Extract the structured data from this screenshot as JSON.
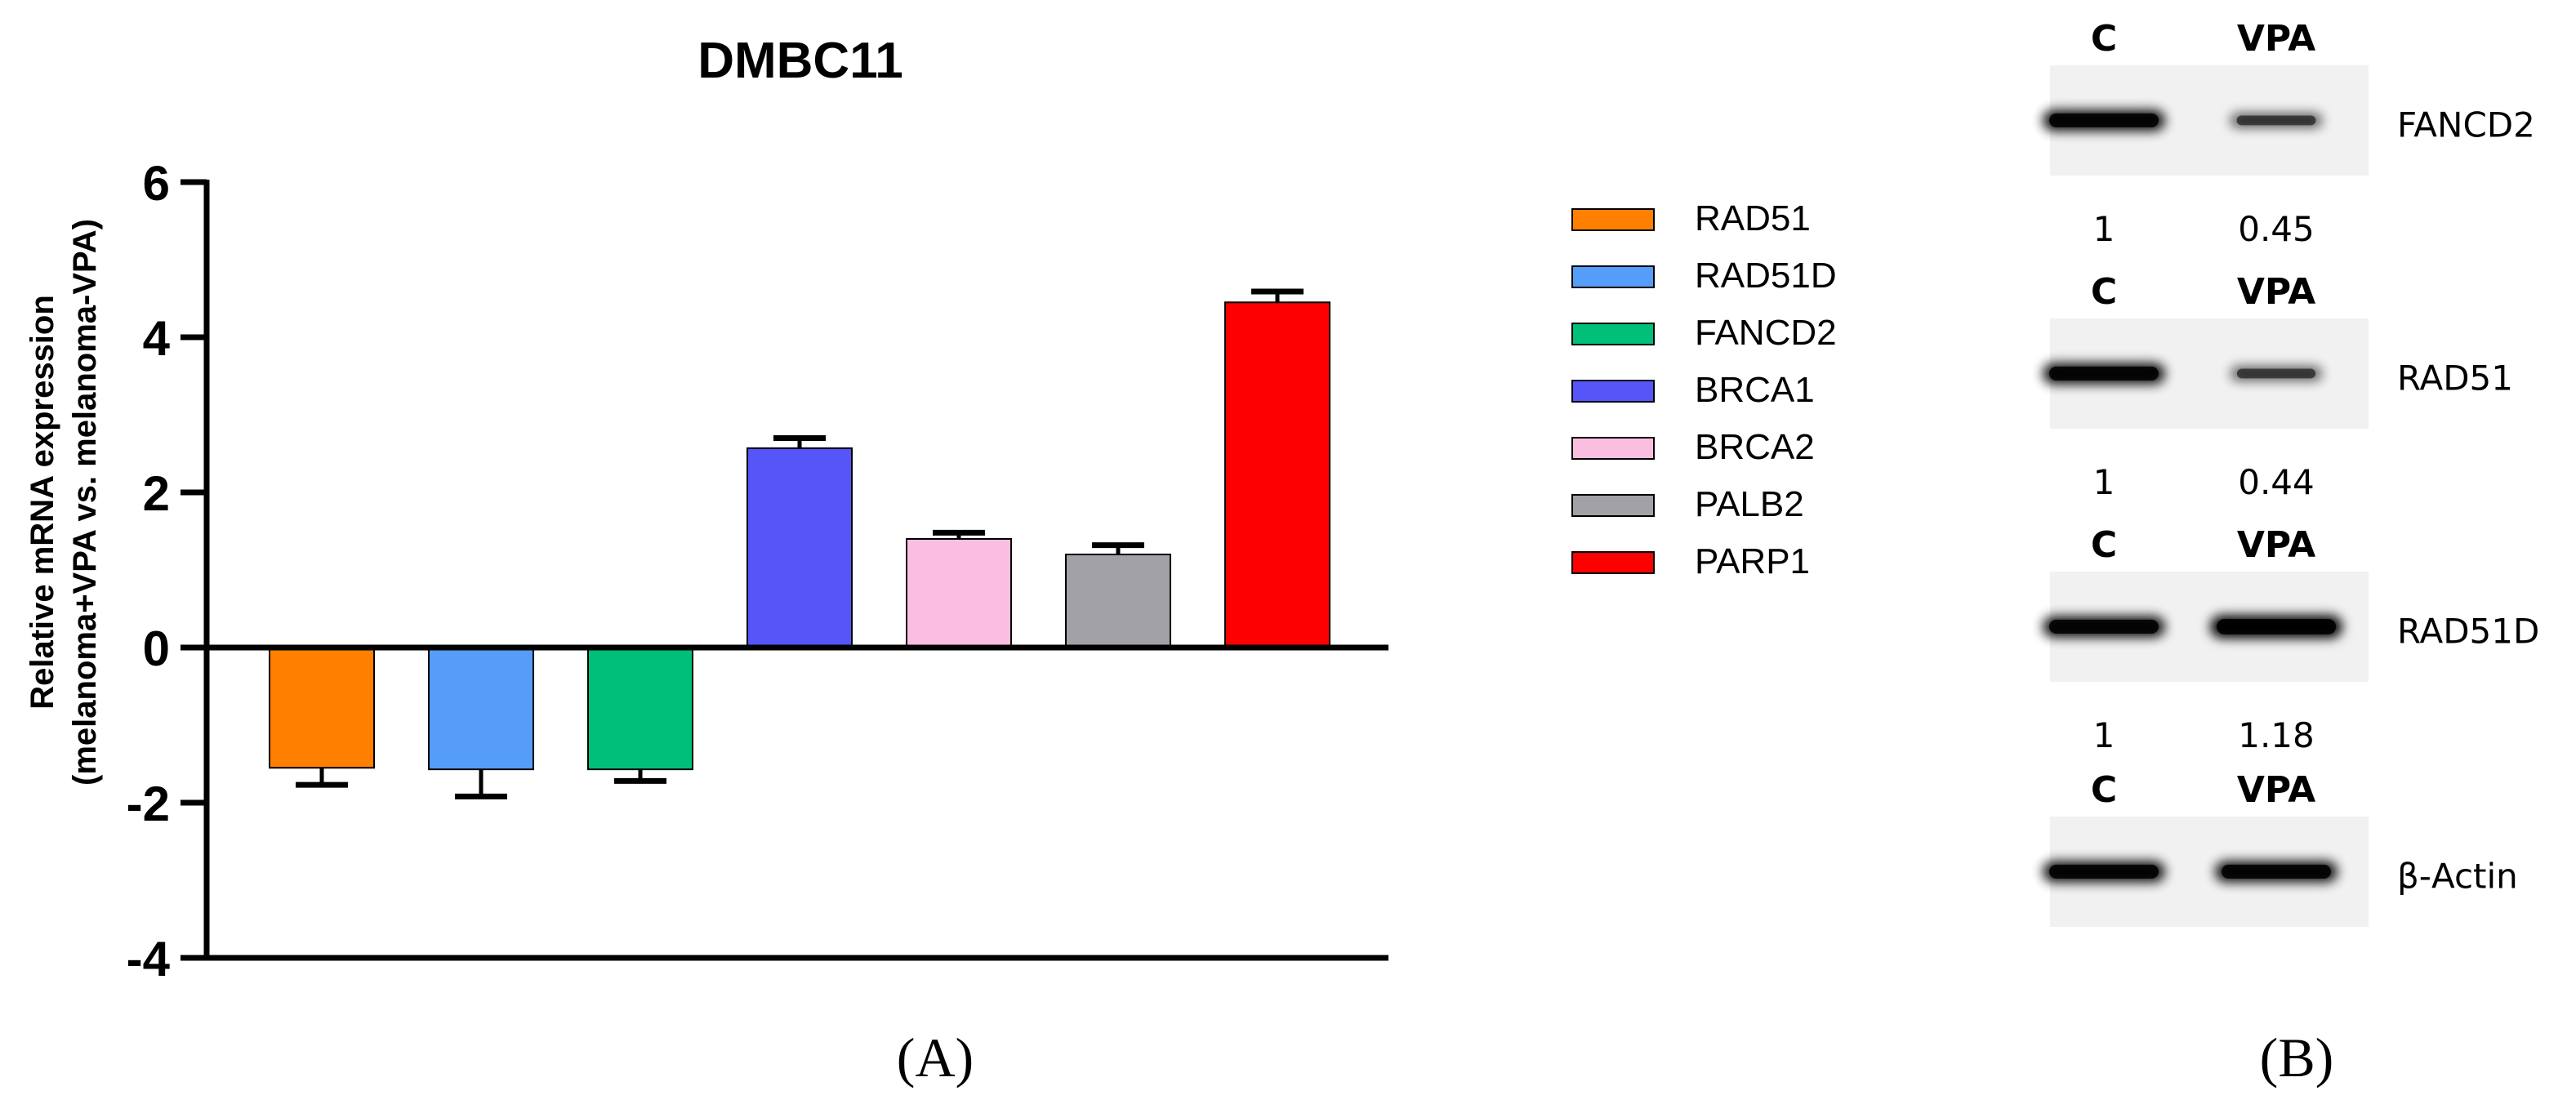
{
  "panel_labels": {
    "a": "(A)",
    "b": "(B)"
  },
  "chart_data": {
    "type": "bar",
    "title": "DMBC11",
    "ylabel_line1": "Relative mRNA expression",
    "ylabel_line2": "(melanoma+VPA vs. melanoma-VPA)",
    "ylim": [
      -4,
      6
    ],
    "yticks": [
      6,
      4,
      2,
      0,
      -2,
      -4
    ],
    "ytick_labels": [
      "6",
      "4",
      "2",
      "0",
      "-2",
      "-4"
    ],
    "categories": [
      "RAD51",
      "RAD51D",
      "FANCD2",
      "BRCA1",
      "BRCA2",
      "PALB2",
      "PARP1"
    ],
    "values": [
      -1.55,
      -1.57,
      -1.57,
      2.57,
      1.4,
      1.2,
      4.45
    ],
    "errors": [
      0.22,
      0.35,
      0.15,
      0.13,
      0.08,
      0.12,
      0.14
    ],
    "colors": [
      "#FF8000",
      "#559DF8",
      "#00BF78",
      "#5655F7",
      "#FABFE0",
      "#A1A1A6",
      "#FD0000"
    ],
    "legend": [
      "RAD51",
      "RAD51D",
      "FANCD2",
      "BRCA1",
      "BRCA2",
      "PALB2",
      "PARP1"
    ],
    "legend_position": "right"
  },
  "western_blot": {
    "blocks": [
      {
        "cond_c": "C",
        "cond_vpa": "VPA",
        "protein": "FANCD2",
        "ratio_c": "1",
        "ratio_vpa": "0.45",
        "band_c": 1.0,
        "band_vpa": 0.45
      },
      {
        "cond_c": "C",
        "cond_vpa": "VPA",
        "protein": "RAD51",
        "ratio_c": "1",
        "ratio_vpa": "0.44",
        "band_c": 1.0,
        "band_vpa": 0.44
      },
      {
        "cond_c": "C",
        "cond_vpa": "VPA",
        "protein": "RAD51D",
        "ratio_c": "1",
        "ratio_vpa": "1.18",
        "band_c": 1.0,
        "band_vpa": 1.18
      },
      {
        "cond_c": "C",
        "cond_vpa": "VPA",
        "protein": "β-Actin",
        "band_c": 1.0,
        "band_vpa": 1.0
      }
    ]
  }
}
